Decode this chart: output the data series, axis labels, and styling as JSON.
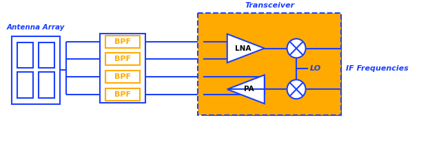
{
  "bg_color": "#ffffff",
  "blue": "#1a3fff",
  "orange": "#ffaa00",
  "white": "#ffffff",
  "black": "#000000",
  "title": "Transceiver",
  "label_antenna": "Antenna Array",
  "label_if": "IF Frequencies",
  "label_lna": "LNA",
  "label_pa": "PA",
  "label_lo": "LO",
  "labels_bpf": [
    "BPF",
    "BPF",
    "BPF",
    "BPF"
  ],
  "figsize": [
    6.11,
    2.16
  ],
  "dpi": 100,
  "lw": 1.5
}
